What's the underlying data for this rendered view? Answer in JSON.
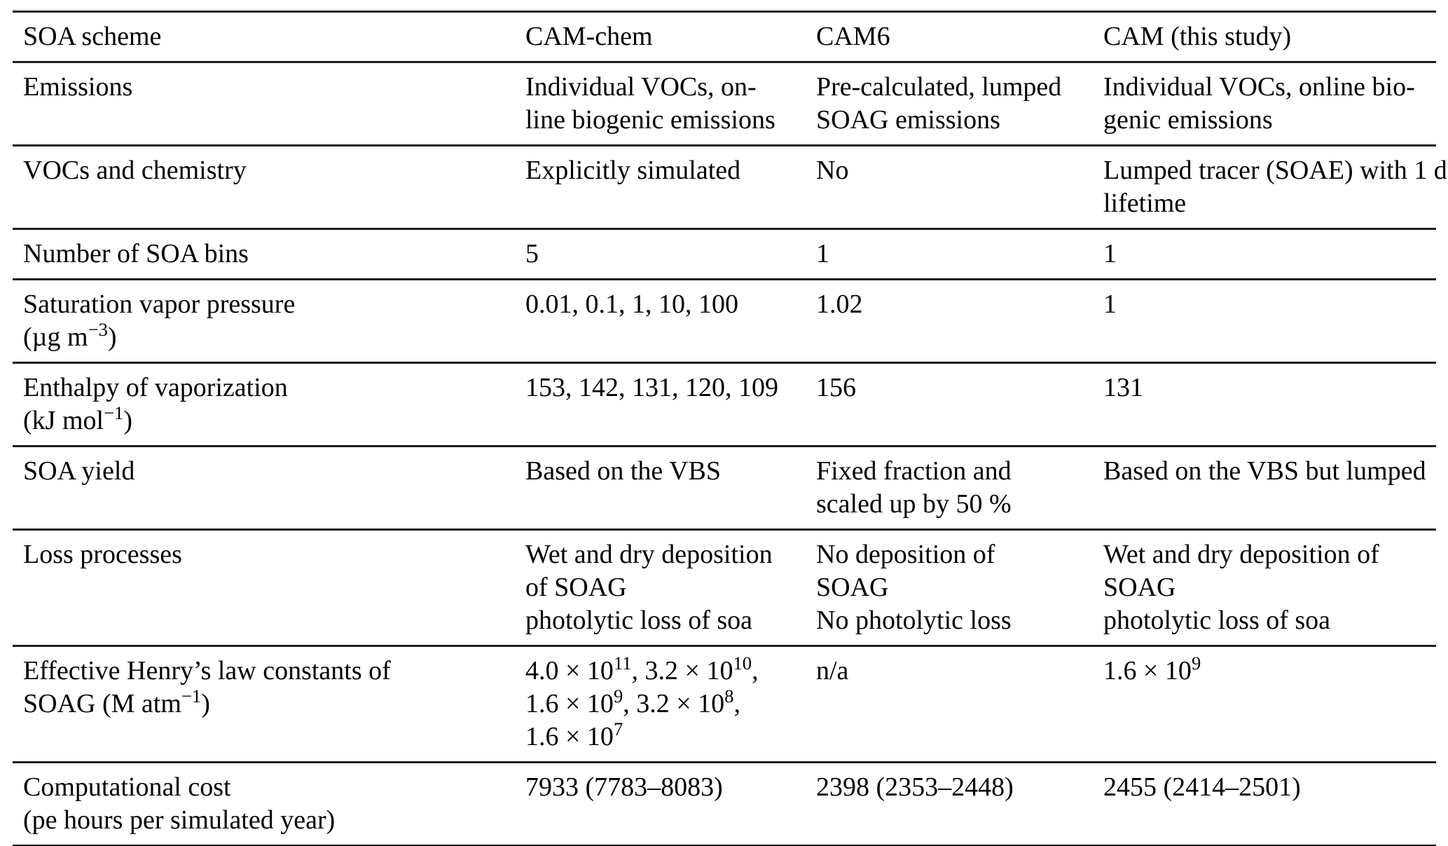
{
  "colors": {
    "background": "#ffffff",
    "text": "#000000",
    "rule": "#1c1c1c"
  },
  "table": {
    "columns": [
      "SOA scheme",
      "CAM-chem",
      "CAM6",
      "CAM (this study)"
    ],
    "rows": [
      {
        "label": "Emissions",
        "cam_chem": "Individual VOCs, on-\nline biogenic emissions",
        "cam6": "Pre-calculated, lumped\nSOAG emissions",
        "cam_this_study": "Individual VOCs, online bio-\ngenic emissions"
      },
      {
        "label": "VOCs and chemistry",
        "cam_chem": "Explicitly simulated",
        "cam6": "No",
        "cam_this_study": "Lumped tracer (SOAE) with 1 d\nlifetime"
      },
      {
        "label": "Number of SOA bins",
        "cam_chem": "5",
        "cam6": "1",
        "cam_this_study": "1"
      },
      {
        "label": "Saturation vapor pressure\n(µg m^{−3})",
        "cam_chem": "0.01, 0.1, 1, 10, 100",
        "cam6": "1.02",
        "cam_this_study": "1"
      },
      {
        "label": "Enthalpy of vaporization\n(kJ mol^{−1})",
        "cam_chem": "153, 142, 131, 120, 109",
        "cam6": "156",
        "cam_this_study": "131"
      },
      {
        "label": "SOA yield",
        "cam_chem": "Based on the VBS",
        "cam6": "Fixed fraction and\nscaled up by 50 %",
        "cam_this_study": "Based on the VBS but lumped"
      },
      {
        "label": "Loss processes",
        "cam_chem": "Wet and dry deposition\nof SOAG\nphotolytic loss of soa",
        "cam6": "No deposition of\nSOAG\nNo photolytic loss",
        "cam_this_study": "Wet and dry deposition of\nSOAG\nphotolytic loss of soa"
      },
      {
        "label": "Effective Henry’s law constants of\nSOAG (M atm^{−1})",
        "cam_chem": "4.0 × 10^{11}, 3.2 × 10^{10},\n1.6 × 10^{9}, 3.2 × 10^{8},\n1.6 × 10^{7}",
        "cam6": "n/a",
        "cam_this_study": "1.6 × 10^{9}"
      },
      {
        "label": "Computational cost\n(pe hours per simulated year)",
        "cam_chem": "7933 (7783–8083)",
        "cam6": "2398 (2353–2448)",
        "cam_this_study": "2455 (2414–2501)"
      }
    ]
  }
}
